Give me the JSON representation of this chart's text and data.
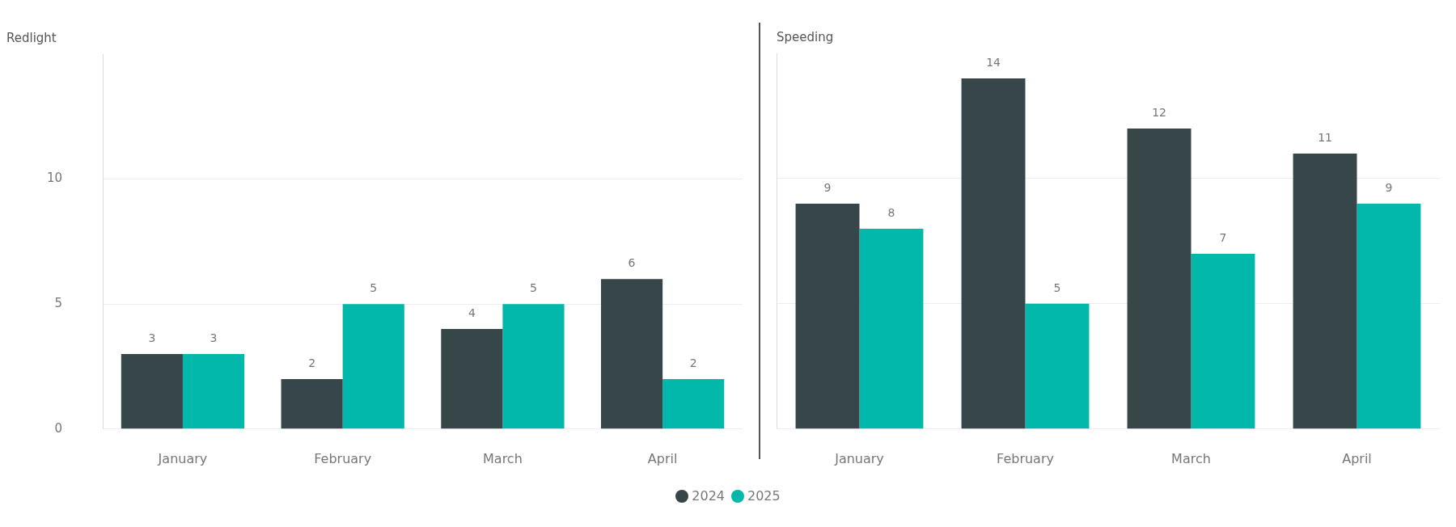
{
  "chart_data": [
    {
      "type": "bar",
      "title": "Redlight",
      "categories": [
        "January",
        "February",
        "March",
        "April"
      ],
      "series": [
        {
          "name": "2024",
          "color": "#374649",
          "values": [
            3,
            2,
            4,
            6
          ]
        },
        {
          "name": "2025",
          "color": "#01b8aa",
          "values": [
            3,
            5,
            5,
            2
          ]
        }
      ],
      "ylim": [
        0,
        15
      ],
      "yticks": [
        0,
        5,
        10
      ],
      "grid": "y",
      "data_labels": true,
      "legend": "bottom"
    },
    {
      "type": "bar",
      "title": "Speeding",
      "categories": [
        "January",
        "February",
        "March",
        "April"
      ],
      "series": [
        {
          "name": "2024",
          "color": "#374649",
          "values": [
            9,
            14,
            12,
            11
          ]
        },
        {
          "name": "2025",
          "color": "#01b8aa",
          "values": [
            8,
            5,
            7,
            9
          ]
        }
      ],
      "ylim": [
        0,
        15
      ],
      "yticks": [
        0,
        5,
        10
      ],
      "grid": "y",
      "data_labels": true,
      "legend": "bottom",
      "tick_labels": "x"
    }
  ]
}
